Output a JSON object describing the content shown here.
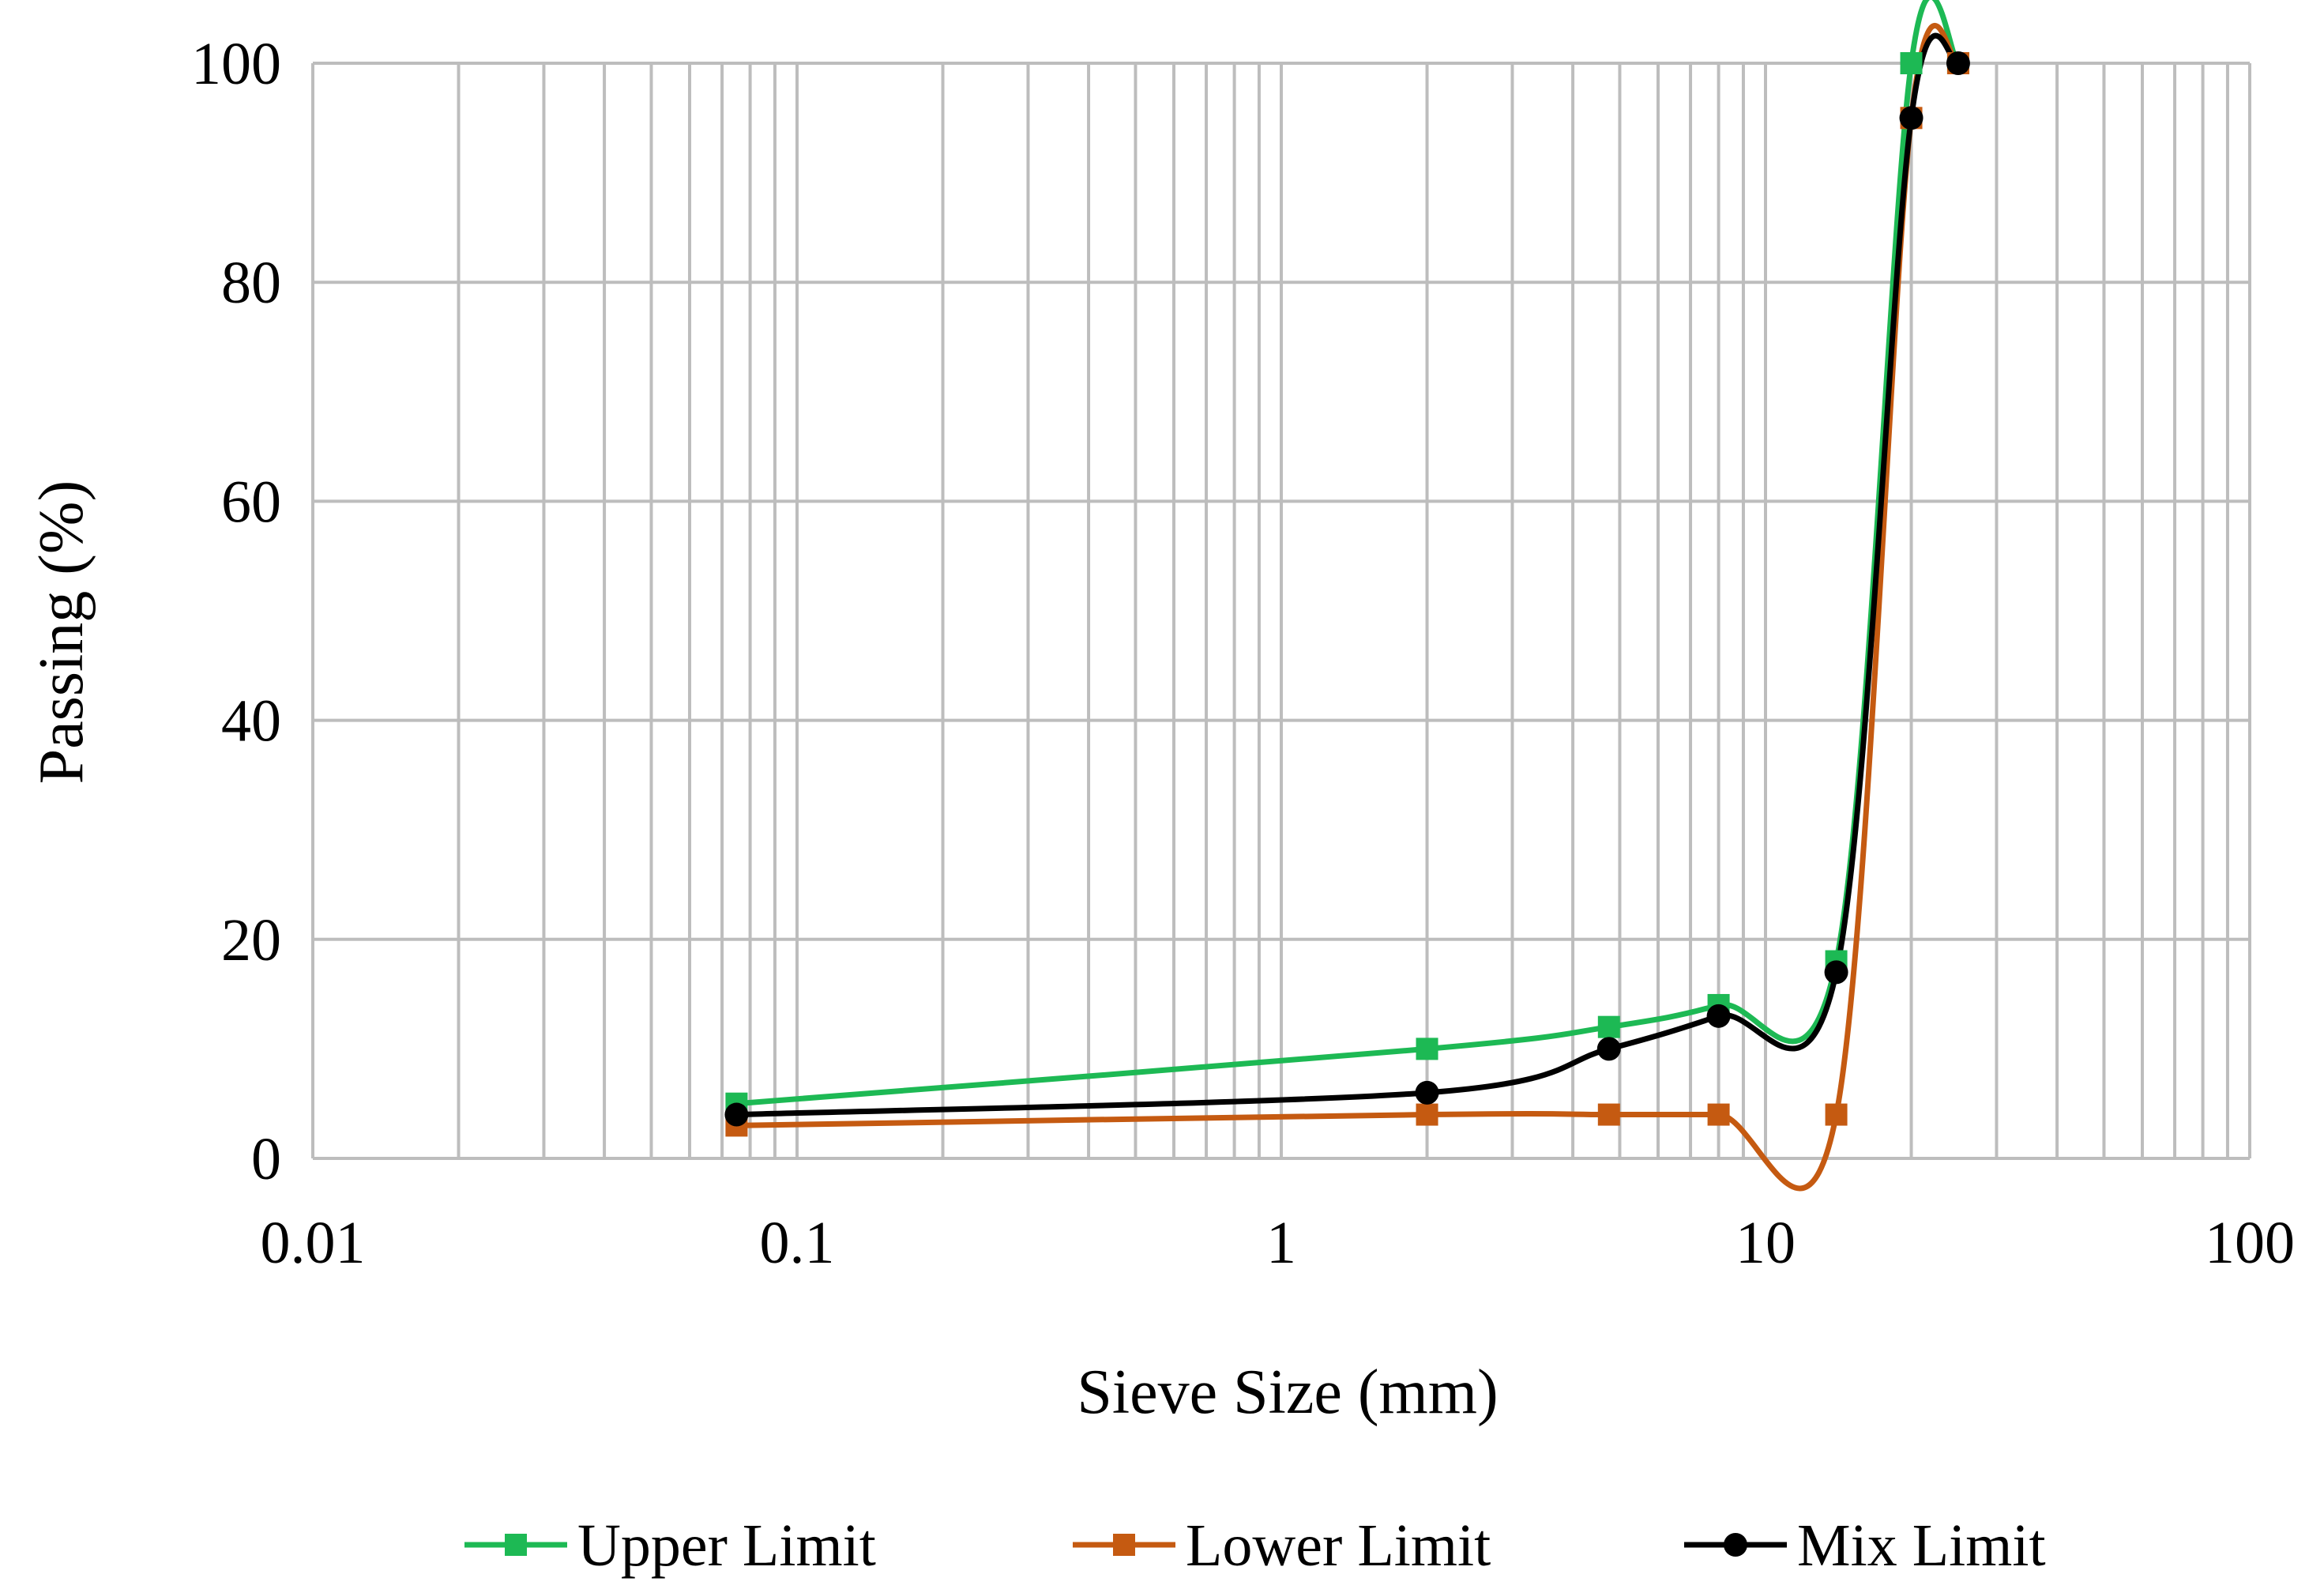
{
  "chart_data": {
    "type": "line",
    "title": "",
    "xlabel": "Sieve Size (mm)",
    "ylabel": "Passing (%)",
    "xscale": "log",
    "xlim": [
      0.01,
      100
    ],
    "ylim": [
      0,
      100
    ],
    "grid": true,
    "legend_position": "bottom",
    "x_ticks": [
      "0.01",
      "0.1",
      "1",
      "10",
      "100"
    ],
    "y_ticks": [
      "0",
      "20",
      "40",
      "60",
      "80",
      "100"
    ],
    "series": [
      {
        "name": "Upper Limit",
        "color": "#1db954",
        "marker": "square",
        "x": [
          0.075,
          2,
          4.75,
          8,
          14,
          20,
          25
        ],
        "y": [
          5,
          10,
          12,
          14,
          18,
          100,
          100
        ]
      },
      {
        "name": "Lower Limit",
        "color": "#c55a11",
        "marker": "square",
        "x": [
          0.075,
          2,
          4.75,
          8,
          14,
          20,
          25
        ],
        "y": [
          3,
          4,
          4,
          4,
          4,
          95,
          100
        ]
      },
      {
        "name": "Mix Limit",
        "color": "#000000",
        "marker": "circle",
        "x": [
          0.075,
          2,
          4.75,
          8,
          14,
          20,
          25
        ],
        "y": [
          4,
          6,
          10,
          13,
          17,
          95,
          100
        ]
      }
    ]
  }
}
